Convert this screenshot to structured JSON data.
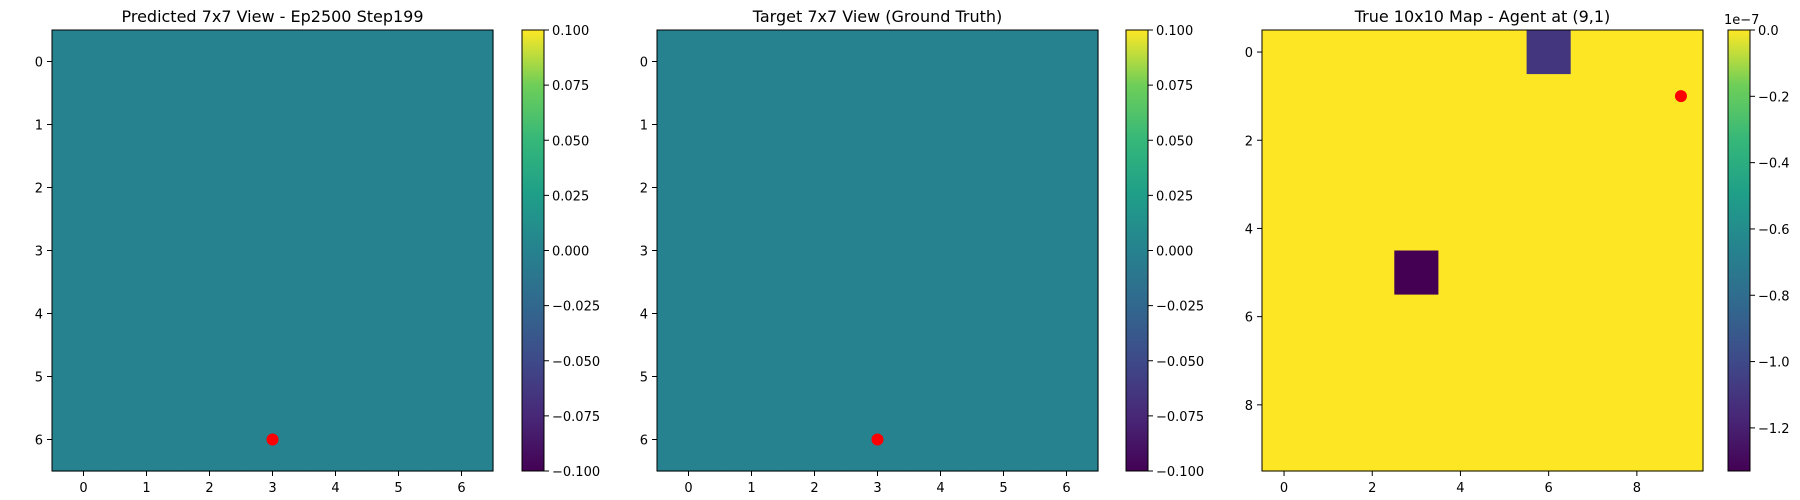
{
  "chart_data": [
    {
      "type": "heatmap",
      "title": "Predicted 7x7 View - Ep2500 Step199",
      "grid_size": [
        7,
        7
      ],
      "x_ticks": [
        "0",
        "1",
        "2",
        "3",
        "4",
        "5",
        "6"
      ],
      "y_ticks": [
        "0",
        "1",
        "2",
        "3",
        "4",
        "5",
        "6"
      ],
      "values": [
        [
          0,
          0,
          0,
          0,
          0,
          0,
          0
        ],
        [
          0,
          0,
          0,
          0,
          0,
          0,
          0
        ],
        [
          0,
          0,
          0,
          0,
          0,
          0,
          0
        ],
        [
          0,
          0,
          0,
          0,
          0,
          0,
          0
        ],
        [
          0,
          0,
          0,
          0,
          0,
          0,
          0
        ],
        [
          0,
          0,
          0,
          0,
          0,
          0,
          0
        ],
        [
          0,
          0,
          0,
          0,
          0,
          0,
          0
        ]
      ],
      "vmin": -0.1,
      "vmax": 0.1,
      "colormap": "viridis",
      "colorbar_ticks": [
        "0.100",
        "0.075",
        "0.050",
        "0.025",
        "0.000",
        "−0.025",
        "−0.050",
        "−0.075",
        "−0.100"
      ],
      "colorbar_tick_values": [
        0.1,
        0.075,
        0.05,
        0.025,
        0.0,
        -0.025,
        -0.05,
        -0.075,
        -0.1
      ],
      "colorbar_offset_label": "",
      "agent": {
        "x": 3,
        "y": 6,
        "color": "#ff0000"
      }
    },
    {
      "type": "heatmap",
      "title": "Target 7x7 View (Ground Truth)",
      "grid_size": [
        7,
        7
      ],
      "x_ticks": [
        "0",
        "1",
        "2",
        "3",
        "4",
        "5",
        "6"
      ],
      "y_ticks": [
        "0",
        "1",
        "2",
        "3",
        "4",
        "5",
        "6"
      ],
      "values": [
        [
          0,
          0,
          0,
          0,
          0,
          0,
          0
        ],
        [
          0,
          0,
          0,
          0,
          0,
          0,
          0
        ],
        [
          0,
          0,
          0,
          0,
          0,
          0,
          0
        ],
        [
          0,
          0,
          0,
          0,
          0,
          0,
          0
        ],
        [
          0,
          0,
          0,
          0,
          0,
          0,
          0
        ],
        [
          0,
          0,
          0,
          0,
          0,
          0,
          0
        ],
        [
          0,
          0,
          0,
          0,
          0,
          0,
          0
        ]
      ],
      "vmin": -0.1,
      "vmax": 0.1,
      "colormap": "viridis",
      "colorbar_ticks": [
        "0.100",
        "0.075",
        "0.050",
        "0.025",
        "0.000",
        "−0.025",
        "−0.050",
        "−0.075",
        "−0.100"
      ],
      "colorbar_tick_values": [
        0.1,
        0.075,
        0.05,
        0.025,
        0.0,
        -0.025,
        -0.05,
        -0.075,
        -0.1
      ],
      "colorbar_offset_label": "",
      "agent": {
        "x": 3,
        "y": 6,
        "color": "#ff0000"
      }
    },
    {
      "type": "heatmap",
      "title": "True 10x10 Map - Agent at (9,1)",
      "grid_size": [
        10,
        10
      ],
      "x_ticks": [
        "0",
        "2",
        "4",
        "6",
        "8"
      ],
      "x_tick_values": [
        0,
        2,
        4,
        6,
        8
      ],
      "y_ticks": [
        "0",
        "2",
        "4",
        "6",
        "8"
      ],
      "y_tick_values": [
        0,
        2,
        4,
        6,
        8
      ],
      "values": [
        [
          0,
          0,
          0,
          0,
          0,
          0,
          -1.1e-07,
          0,
          0,
          0
        ],
        [
          0,
          0,
          0,
          0,
          0,
          0,
          0,
          0,
          0,
          0
        ],
        [
          0,
          0,
          0,
          0,
          0,
          0,
          0,
          0,
          0,
          0
        ],
        [
          0,
          0,
          0,
          0,
          0,
          0,
          0,
          0,
          0,
          0
        ],
        [
          0,
          0,
          0,
          0,
          0,
          0,
          0,
          0,
          0,
          0
        ],
        [
          0,
          0,
          0,
          -1.33e-07,
          0,
          0,
          0,
          0,
          0,
          0
        ],
        [
          0,
          0,
          0,
          0,
          0,
          0,
          0,
          0,
          0,
          0
        ],
        [
          0,
          0,
          0,
          0,
          0,
          0,
          0,
          0,
          0,
          0
        ],
        [
          0,
          0,
          0,
          0,
          0,
          0,
          0,
          0,
          0,
          0
        ],
        [
          0,
          0,
          0,
          0,
          0,
          0,
          0,
          0,
          0,
          0
        ]
      ],
      "vmin": -1.33e-07,
      "vmax": 0.0,
      "colormap": "viridis",
      "colorbar_ticks": [
        "0.0",
        "−0.2",
        "−0.4",
        "−0.6",
        "−0.8",
        "−1.0",
        "−1.2"
      ],
      "colorbar_tick_values": [
        0.0,
        -2e-08,
        -4e-08,
        -6e-08,
        -8e-08,
        -1e-07,
        -1.2e-07
      ],
      "colorbar_offset_label": "1e−7",
      "agent": {
        "x": 9,
        "y": 1,
        "color": "#ff0000"
      }
    }
  ]
}
